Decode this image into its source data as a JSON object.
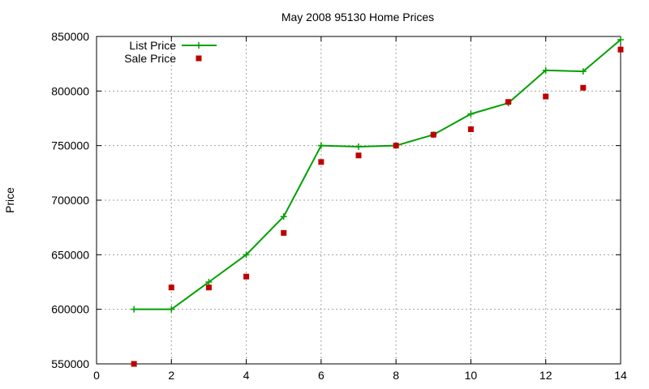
{
  "chart_data": {
    "type": "line",
    "title": "May 2008 95130 Home Prices",
    "xlabel": "",
    "ylabel": "Price",
    "xlim": [
      0,
      14
    ],
    "ylim": [
      550000,
      850000
    ],
    "xticks": [
      0,
      2,
      4,
      6,
      8,
      10,
      12,
      14
    ],
    "yticks": [
      550000,
      600000,
      650000,
      700000,
      750000,
      800000,
      850000
    ],
    "grid": true,
    "legend_position": "top-left",
    "series": [
      {
        "name": "List Price",
        "style": "line-with-plus-markers",
        "color": "#00a000",
        "x": [
          1,
          2,
          3,
          4,
          5,
          6,
          7,
          8,
          9,
          10,
          11,
          12,
          13,
          14
        ],
        "y": [
          600000,
          600000,
          625000,
          650000,
          685000,
          750000,
          749000,
          750000,
          760000,
          779000,
          789000,
          819000,
          818000,
          847000
        ]
      },
      {
        "name": "Sale Price",
        "style": "square-markers",
        "color": "#c00000",
        "x": [
          1,
          2,
          3,
          4,
          5,
          6,
          7,
          8,
          9,
          10,
          11,
          12,
          13,
          14
        ],
        "y": [
          550000,
          620000,
          620000,
          630000,
          670000,
          735000,
          741000,
          750000,
          760000,
          765000,
          790000,
          795000,
          803000,
          838000
        ]
      }
    ]
  }
}
